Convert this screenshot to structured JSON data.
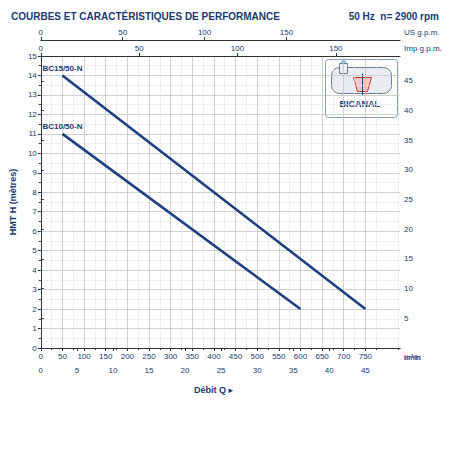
{
  "chart_data": {
    "type": "line",
    "title": "COURBES ET CARACTÉRISTIQUES DE PERFORMANCE",
    "subtitle": "50 Hz  n= 2900 rpm",
    "annotation": "BICANAL",
    "xlabel": "Débit Q ▸",
    "xunit": "l/min",
    "ylabel": "HMT H (mètres)",
    "xlim": [
      0,
      830
    ],
    "xticks": [
      0,
      50,
      100,
      150,
      200,
      250,
      300,
      350,
      400,
      450,
      500,
      550,
      600,
      650,
      700,
      750
    ],
    "ylim": [
      0,
      15
    ],
    "yticks": [
      0,
      1,
      2,
      3,
      4,
      5,
      6,
      7,
      8,
      9,
      10,
      11,
      12,
      13,
      14,
      15
    ],
    "y2lim": [
      0,
      49.2
    ],
    "y2ticks": [
      5,
      10,
      15,
      20,
      25,
      30,
      35,
      40,
      45
    ],
    "secondary_x_axes": [
      {
        "unit": "m³/h",
        "position": "bottom",
        "lim": [
          0,
          49.8
        ],
        "ticks": [
          0,
          5,
          10,
          15,
          20,
          25,
          30,
          35,
          40,
          45
        ]
      },
      {
        "unit": "Imp g.p.m.",
        "position": "top",
        "lim": [
          0,
          182.6
        ],
        "ticks": [
          0,
          50,
          100,
          150
        ]
      },
      {
        "unit": "US g.p.m.",
        "position": "top",
        "lim": [
          0,
          219.3
        ],
        "ticks": [
          0,
          50,
          100,
          150
        ]
      }
    ],
    "grid": true,
    "series": [
      {
        "name": "BC15/50-N",
        "color": "#1f3f80",
        "x": [
          50,
          750
        ],
        "values": [
          14,
          2
        ]
      },
      {
        "name": "BC10/50-N",
        "color": "#1f3f80",
        "x": [
          50,
          600
        ],
        "values": [
          11,
          2
        ]
      }
    ]
  }
}
